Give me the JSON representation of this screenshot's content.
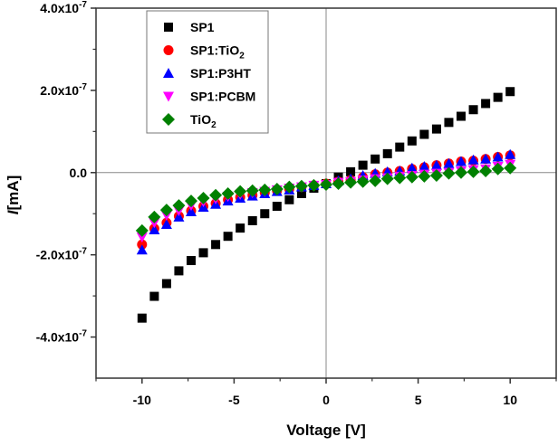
{
  "chart_data": {
    "type": "scatter",
    "title": "",
    "xlabel": "Voltage [V]",
    "ylabel_italic": "I",
    "ylabel_rest": "[mA]",
    "xlim": [
      -12.5,
      12.5
    ],
    "ylim": [
      -5e-07,
      4e-07
    ],
    "grid": false,
    "zero_lines": true,
    "legend_position": "top-left",
    "x_ticks": [
      {
        "value": -10,
        "label": "-10"
      },
      {
        "value": -5,
        "label": "-5"
      },
      {
        "value": 0,
        "label": "0"
      },
      {
        "value": 5,
        "label": "5"
      },
      {
        "value": 10,
        "label": "10"
      }
    ],
    "x_minor_ticks": [
      -12.5,
      -7.5,
      -2.5,
      2.5,
      7.5,
      12.5
    ],
    "y_ticks": [
      {
        "value": 4e-07,
        "mantissa": "4.0x10",
        "exp": "-7"
      },
      {
        "value": 2e-07,
        "mantissa": "2.0x10",
        "exp": "-7"
      },
      {
        "value": 0.0,
        "mantissa": "0.0",
        "exp": ""
      },
      {
        "value": -2e-07,
        "mantissa": "-2.0x10",
        "exp": "-7"
      },
      {
        "value": -4e-07,
        "mantissa": "-4.0x10",
        "exp": "-7"
      }
    ],
    "y_minor_ticks": [
      3e-07,
      1e-07,
      -1e-07,
      -3e-07
    ],
    "x": [
      -10,
      -9.333,
      -8.667,
      -8,
      -7.333,
      -6.667,
      -6,
      -5.333,
      -4.667,
      -4,
      -3.333,
      -2.667,
      -2,
      -1.333,
      -0.667,
      0,
      0.667,
      1.333,
      2,
      2.667,
      3.333,
      4,
      4.667,
      5.333,
      6,
      6.667,
      7.333,
      8,
      8.667,
      9.333,
      10
    ],
    "series": [
      {
        "name": "SP1",
        "name_main": "SP1",
        "name_sub": "",
        "name_tail": "",
        "marker": "square",
        "color": "#000000",
        "values_e7": [
          -3.54,
          -3.01,
          -2.7,
          -2.39,
          -2.14,
          -1.95,
          -1.75,
          -1.55,
          -1.35,
          -1.17,
          -1.0,
          -0.82,
          -0.66,
          -0.51,
          -0.38,
          -0.27,
          -0.11,
          0.02,
          0.18,
          0.33,
          0.46,
          0.62,
          0.77,
          0.93,
          1.06,
          1.22,
          1.37,
          1.53,
          1.68,
          1.83,
          1.97
        ]
      },
      {
        "name": "SP1:TiO2",
        "name_main": "SP1:TiO",
        "name_sub": "2",
        "name_tail": "",
        "marker": "circle",
        "color": "#ff0000",
        "values_e7": [
          -1.75,
          -1.36,
          -1.22,
          -1.06,
          -0.93,
          -0.82,
          -0.75,
          -0.66,
          -0.6,
          -0.55,
          -0.49,
          -0.44,
          -0.4,
          -0.35,
          -0.31,
          -0.27,
          -0.22,
          -0.18,
          -0.11,
          -0.04,
          0.0,
          0.04,
          0.09,
          0.13,
          0.18,
          0.22,
          0.27,
          0.29,
          0.33,
          0.38,
          0.42
        ]
      },
      {
        "name": "SP1:P3HT",
        "name_main": "SP1:P3HT",
        "name_sub": "",
        "name_tail": "",
        "marker": "triangle-up",
        "color": "#0000ff",
        "values_e7": [
          -1.88,
          -1.39,
          -1.26,
          -1.08,
          -0.95,
          -0.84,
          -0.77,
          -0.69,
          -0.62,
          -0.57,
          -0.51,
          -0.46,
          -0.42,
          -0.35,
          -0.31,
          -0.27,
          -0.2,
          -0.15,
          -0.07,
          -0.02,
          0.02,
          0.04,
          0.11,
          0.15,
          0.18,
          0.22,
          0.27,
          0.31,
          0.33,
          0.38,
          0.44
        ]
      },
      {
        "name": "SP1:PCBM",
        "name_main": "SP1:PCBM",
        "name_sub": "",
        "name_tail": "",
        "marker": "triangle-down",
        "color": "#ff00ff",
        "values_e7": [
          -1.57,
          -1.22,
          -1.04,
          -0.93,
          -0.8,
          -0.71,
          -0.64,
          -0.58,
          -0.53,
          -0.49,
          -0.46,
          -0.42,
          -0.38,
          -0.35,
          -0.31,
          -0.29,
          -0.24,
          -0.22,
          -0.18,
          -0.15,
          -0.13,
          -0.09,
          -0.07,
          -0.04,
          -0.02,
          0.0,
          0.04,
          0.07,
          0.09,
          0.15,
          0.2
        ]
      },
      {
        "name": "TiO2",
        "name_main": "TiO",
        "name_sub": "2",
        "name_tail": "",
        "marker": "diamond",
        "color": "#008000",
        "values_e7": [
          -1.41,
          -1.08,
          -0.91,
          -0.8,
          -0.69,
          -0.62,
          -0.55,
          -0.51,
          -0.46,
          -0.44,
          -0.42,
          -0.4,
          -0.35,
          -0.33,
          -0.31,
          -0.29,
          -0.27,
          -0.24,
          -0.22,
          -0.2,
          -0.15,
          -0.13,
          -0.11,
          -0.09,
          -0.07,
          -0.02,
          0.0,
          0.02,
          0.04,
          0.09,
          0.11
        ]
      }
    ],
    "value_scale": 1e-07
  }
}
